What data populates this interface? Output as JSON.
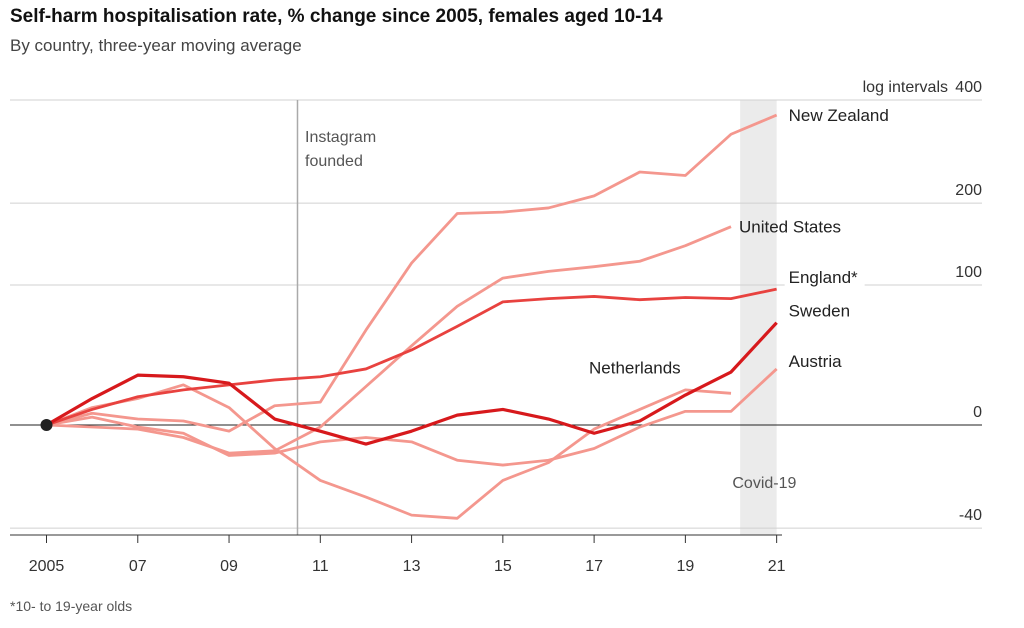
{
  "chart_data": {
    "type": "line",
    "title": "Self-harm hospitalisation rate, % change since 2005, females aged 10-14",
    "subtitle": "By country, three-year moving average",
    "ylabel": "log intervals",
    "footnote": "*10- to 19-year olds",
    "yscale": "log",
    "x": [
      2005,
      2006,
      2007,
      2008,
      2009,
      2010,
      2011,
      2012,
      2013,
      2014,
      2015,
      2016,
      2017,
      2018,
      2019,
      2020,
      2021
    ],
    "xlim": [
      2004.2,
      2025.5
    ],
    "xticks": [
      {
        "value": 2005,
        "label": "2005"
      },
      {
        "value": 2007,
        "label": "07"
      },
      {
        "value": 2009,
        "label": "09"
      },
      {
        "value": 2011,
        "label": "11"
      },
      {
        "value": 2013,
        "label": "13"
      },
      {
        "value": 2015,
        "label": "15"
      },
      {
        "value": 2017,
        "label": "17"
      },
      {
        "value": 2019,
        "label": "19"
      },
      {
        "value": 2021,
        "label": "21"
      }
    ],
    "ylim": [
      -42,
      400
    ],
    "yticks": [
      -40,
      0,
      100,
      200,
      400
    ],
    "grid": true,
    "annotations": [
      {
        "label": "Instagram founded",
        "x": 2010.5
      },
      {
        "label": "Covid-19",
        "x": [
          2020.2,
          2021
        ]
      }
    ],
    "series": [
      {
        "name": "New Zealand",
        "color": "#f4978e",
        "values": [
          0,
          6,
          3,
          2,
          -3,
          10,
          12,
          60,
          123,
          185,
          187,
          193,
          211,
          250,
          244,
          322,
          364
        ]
      },
      {
        "name": "United States",
        "color": "#f4978e",
        "values": [
          0,
          -1,
          -2,
          -6,
          -13,
          -12,
          -1,
          21,
          48,
          80,
          107,
          114,
          119,
          125,
          143,
          167,
          null
        ]
      },
      {
        "name": "Netherlands",
        "color": "#f4978e",
        "values": [
          0,
          9,
          14,
          22,
          9,
          -11,
          -24,
          -30,
          -36,
          -37,
          -24,
          -17,
          -2,
          8,
          19,
          17,
          null
        ]
      },
      {
        "name": "Austria",
        "color": "#f4978e",
        "values": [
          0,
          4,
          -1,
          -4,
          -14,
          -13,
          -8,
          -6,
          -8,
          -16,
          -18,
          -16,
          -11,
          -1,
          7,
          7,
          32
        ]
      },
      {
        "name": "England*",
        "color": "#e8423f",
        "values": [
          0,
          8,
          15,
          19,
          22,
          25,
          27,
          32,
          45,
          63,
          84,
          87,
          89,
          86,
          88,
          87,
          96
        ]
      },
      {
        "name": "Sweden",
        "color": "#d7191c",
        "values": [
          0,
          14,
          28,
          27,
          23,
          3,
          -3,
          -9,
          -3,
          5,
          8,
          3,
          -4,
          2,
          16,
          30,
          66
        ]
      }
    ]
  }
}
